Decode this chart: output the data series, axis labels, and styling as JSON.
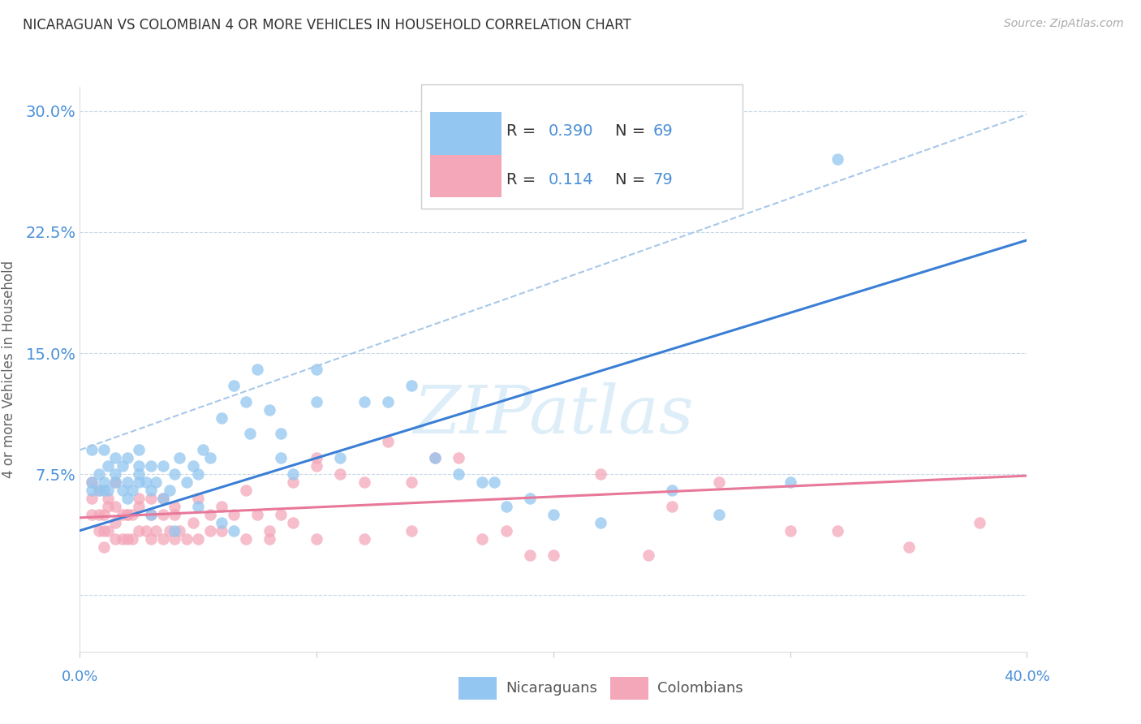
{
  "title": "NICARAGUAN VS COLOMBIAN 4 OR MORE VEHICLES IN HOUSEHOLD CORRELATION CHART",
  "source": "Source: ZipAtlas.com",
  "ylabel": "4 or more Vehicles in Household",
  "xmin": 0.0,
  "xmax": 0.4,
  "ymin": -0.035,
  "ymax": 0.315,
  "yticks": [
    0.0,
    0.075,
    0.15,
    0.225,
    0.3
  ],
  "ytick_labels": [
    "",
    "7.5%",
    "15.0%",
    "22.5%",
    "30.0%"
  ],
  "watermark": "ZIPatlas",
  "nicaraguan_color": "#93c6f0",
  "colombian_color": "#f4a7b9",
  "regression_line_nic_color": "#3a7fd5",
  "regression_line_col_color": "#e8789a",
  "dashed_line_color": "#a8c8e8",
  "label_color": "#4a90d9",
  "background_color": "#ffffff",
  "grid_color": "#c8d8ea",
  "nic_slope": 0.45,
  "nic_intercept": 0.04,
  "col_slope": 0.065,
  "col_intercept": 0.048,
  "dash_slope": 0.52,
  "dash_intercept": 0.09,
  "nicaraguan_scatter": {
    "x": [
      0.005,
      0.005,
      0.008,
      0.008,
      0.01,
      0.01,
      0.012,
      0.012,
      0.015,
      0.015,
      0.018,
      0.018,
      0.02,
      0.02,
      0.022,
      0.025,
      0.025,
      0.025,
      0.028,
      0.03,
      0.03,
      0.032,
      0.035,
      0.038,
      0.04,
      0.042,
      0.045,
      0.048,
      0.05,
      0.052,
      0.055,
      0.06,
      0.065,
      0.07,
      0.072,
      0.075,
      0.08,
      0.085,
      0.085,
      0.09,
      0.1,
      0.1,
      0.11,
      0.12,
      0.13,
      0.14,
      0.15,
      0.16,
      0.17,
      0.175,
      0.18,
      0.19,
      0.2,
      0.22,
      0.25,
      0.27,
      0.3,
      0.005,
      0.01,
      0.015,
      0.02,
      0.025,
      0.03,
      0.035,
      0.04,
      0.05,
      0.06,
      0.065,
      0.32
    ],
    "y": [
      0.07,
      0.09,
      0.065,
      0.075,
      0.07,
      0.09,
      0.065,
      0.08,
      0.07,
      0.085,
      0.065,
      0.08,
      0.07,
      0.085,
      0.065,
      0.07,
      0.08,
      0.09,
      0.07,
      0.065,
      0.08,
      0.07,
      0.08,
      0.065,
      0.075,
      0.085,
      0.07,
      0.08,
      0.075,
      0.09,
      0.085,
      0.11,
      0.13,
      0.12,
      0.1,
      0.14,
      0.115,
      0.1,
      0.085,
      0.075,
      0.14,
      0.12,
      0.085,
      0.12,
      0.12,
      0.13,
      0.085,
      0.075,
      0.07,
      0.07,
      0.055,
      0.06,
      0.05,
      0.045,
      0.065,
      0.05,
      0.07,
      0.065,
      0.065,
      0.075,
      0.06,
      0.075,
      0.05,
      0.06,
      0.04,
      0.055,
      0.045,
      0.04,
      0.27
    ]
  },
  "colombian_scatter": {
    "x": [
      0.005,
      0.005,
      0.005,
      0.008,
      0.008,
      0.01,
      0.01,
      0.01,
      0.012,
      0.012,
      0.015,
      0.015,
      0.015,
      0.018,
      0.018,
      0.02,
      0.02,
      0.022,
      0.022,
      0.025,
      0.025,
      0.028,
      0.03,
      0.03,
      0.032,
      0.035,
      0.035,
      0.038,
      0.04,
      0.04,
      0.042,
      0.045,
      0.048,
      0.05,
      0.055,
      0.06,
      0.065,
      0.07,
      0.075,
      0.08,
      0.085,
      0.09,
      0.1,
      0.1,
      0.11,
      0.12,
      0.13,
      0.14,
      0.15,
      0.16,
      0.17,
      0.18,
      0.19,
      0.2,
      0.22,
      0.24,
      0.27,
      0.3,
      0.32,
      0.35,
      0.008,
      0.012,
      0.015,
      0.02,
      0.025,
      0.03,
      0.035,
      0.04,
      0.05,
      0.055,
      0.06,
      0.07,
      0.08,
      0.09,
      0.1,
      0.12,
      0.14,
      0.25,
      0.38
    ],
    "y": [
      0.05,
      0.06,
      0.07,
      0.04,
      0.05,
      0.03,
      0.04,
      0.05,
      0.04,
      0.055,
      0.035,
      0.045,
      0.055,
      0.035,
      0.05,
      0.035,
      0.05,
      0.035,
      0.05,
      0.04,
      0.055,
      0.04,
      0.035,
      0.05,
      0.04,
      0.035,
      0.05,
      0.04,
      0.035,
      0.05,
      0.04,
      0.035,
      0.045,
      0.035,
      0.04,
      0.04,
      0.05,
      0.035,
      0.05,
      0.035,
      0.05,
      0.045,
      0.035,
      0.085,
      0.075,
      0.035,
      0.095,
      0.04,
      0.085,
      0.085,
      0.035,
      0.04,
      0.025,
      0.025,
      0.075,
      0.025,
      0.07,
      0.04,
      0.04,
      0.03,
      0.065,
      0.06,
      0.07,
      0.05,
      0.06,
      0.06,
      0.06,
      0.055,
      0.06,
      0.05,
      0.055,
      0.065,
      0.04,
      0.07,
      0.08,
      0.07,
      0.07,
      0.055,
      0.045
    ]
  }
}
